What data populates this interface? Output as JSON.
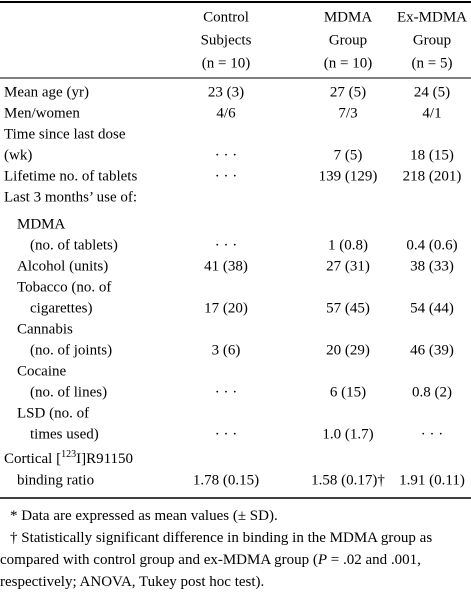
{
  "table": {
    "header": {
      "columns": [
        [
          "Control",
          "Subjects",
          "(n = 10)"
        ],
        [
          "MDMA",
          "Group",
          "(n = 10)"
        ],
        [
          "Ex-MDMA",
          "Group",
          "(n = 5)"
        ]
      ]
    },
    "rows": [
      {
        "label": "Mean age (yr)",
        "cells": [
          "23 (3)",
          "27 (5)",
          "24 (5)"
        ]
      },
      {
        "label": "Men/women",
        "cells": [
          "4/6",
          "7/3",
          "4/1"
        ]
      },
      {
        "label": "Time since last dose"
      },
      {
        "label": "(wk)",
        "cells": [
          "· · ·",
          "7 (5)",
          "18 (15)"
        ]
      },
      {
        "label": "Lifetime no. of tablets",
        "cells": [
          "· · ·",
          "139 (129)",
          "218 (201)"
        ]
      },
      {
        "label": "Last 3 months’ use of:"
      },
      {
        "label": "MDMA"
      },
      {
        "label": "(no. of tablets)",
        "cells": [
          "· · ·",
          "1 (0.8)",
          "0.4 (0.6)"
        ]
      },
      {
        "label": "Alcohol (units)",
        "cells": [
          "41 (38)",
          "27 (31)",
          "38 (33)"
        ]
      },
      {
        "label": "Tobacco (no. of"
      },
      {
        "label": "cigarettes)",
        "cells": [
          "17 (20)",
          "57 (45)",
          "54 (44)"
        ]
      },
      {
        "label": "Cannabis"
      },
      {
        "label": "(no. of joints)",
        "cells": [
          "3 (6)",
          "20 (29)",
          "46 (39)"
        ]
      },
      {
        "label": "Cocaine"
      },
      {
        "label": "(no. of lines)",
        "cells": [
          "· · ·",
          "6 (15)",
          "0.8 (2)"
        ]
      },
      {
        "label": "LSD (no. of"
      },
      {
        "label": "times used)",
        "cells": [
          "· · ·",
          "1.0 (1.7)",
          "· · ·"
        ]
      },
      {
        "label": [
          "Cortical [",
          "123",
          "I]R91150"
        ]
      },
      {
        "label": "binding ratio",
        "cells": [
          "1.78 (0.15)",
          "1.58 (0.17)†",
          "1.91 (0.11)"
        ]
      }
    ]
  },
  "footnotes": [
    [
      "* Data are expressed as mean values (± SD)."
    ],
    [
      "† Statistically significant difference in binding in the MDMA group as compared with control group and ex-MDMA group (",
      "P",
      " = .02 and .001, respectively; ANOVA, Tukey post hoc test)."
    ]
  ]
}
